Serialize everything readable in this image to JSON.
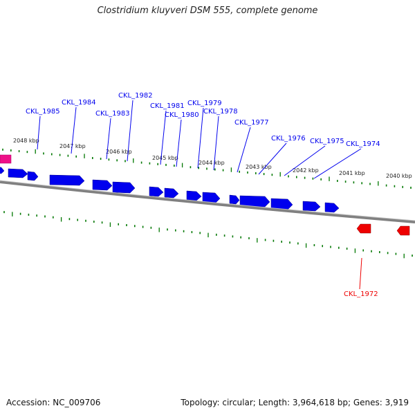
{
  "title": "Clostridium kluyveri DSM 555, complete genome",
  "footer": {
    "accession": "Accession: NC_009706",
    "summary": "Topology: circular; Length: 3,964,618 bp; Genes: 3,919"
  },
  "colors": {
    "forward": "#0000ee",
    "reverse": "#ee0000",
    "rna": "#ee1188",
    "tick": "#007700",
    "backbone": "#808080"
  },
  "kbp_labels": [
    "2048 kbp",
    "2047 kbp",
    "2046 kbp",
    "2045 kbp",
    "2044 kbp",
    "2043 kbp",
    "2042 kbp",
    "2041 kbp",
    "2040 kbp"
  ],
  "genes": [
    {
      "name": "CKL_1985",
      "strand": "forward"
    },
    {
      "name": "CKL_1984",
      "strand": "forward"
    },
    {
      "name": "CKL_1983",
      "strand": "forward"
    },
    {
      "name": "CKL_1982",
      "strand": "forward"
    },
    {
      "name": "CKL_1981",
      "strand": "forward"
    },
    {
      "name": "CKL_1980",
      "strand": "forward"
    },
    {
      "name": "CKL_1979",
      "strand": "forward"
    },
    {
      "name": "CKL_1978",
      "strand": "forward"
    },
    {
      "name": "CKL_1977",
      "strand": "forward"
    },
    {
      "name": "CKL_1976",
      "strand": "forward"
    },
    {
      "name": "CKL_1975",
      "strand": "forward"
    },
    {
      "name": "CKL_1974",
      "strand": "forward"
    },
    {
      "name": "CKL_1972",
      "strand": "reverse"
    }
  ]
}
